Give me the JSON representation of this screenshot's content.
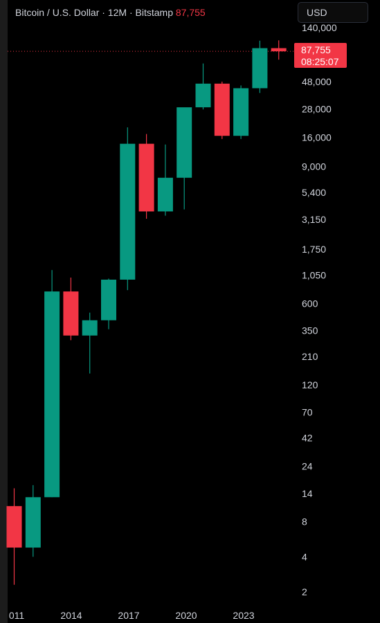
{
  "header": {
    "symbol": "Bitcoin / U.S. Dollar",
    "interval": "12M",
    "exchange": "Bitstamp",
    "last_price": "87,755",
    "separator": "·"
  },
  "currency_selector": {
    "value": "USD"
  },
  "price_label": {
    "price": "87,755",
    "countdown": "08:25:07",
    "color": "#f23645"
  },
  "colors": {
    "up": "#089981",
    "down": "#f23645",
    "background": "#000000",
    "text": "#d1d4dc"
  },
  "chart_data": {
    "type": "candlestick",
    "scale": "log",
    "title": "Bitcoin / U.S. Dollar · 12M · Bitstamp",
    "ylim": [
      1.6,
      155000
    ],
    "y_ticks": [
      "140,000",
      "48,000",
      "28,000",
      "16,000",
      "9,000",
      "5,400",
      "3,150",
      "1,750",
      "1,050",
      "600",
      "350",
      "210",
      "120",
      "70",
      "42",
      "24",
      "14",
      "8",
      "4",
      "2"
    ],
    "x_tick_labels": [
      "011",
      "2014",
      "2017",
      "2020",
      "2023"
    ],
    "candles": [
      {
        "year": 2012,
        "open": 10.9,
        "high": 15.5,
        "low": 2.3,
        "close": 4.8
      },
      {
        "year": 2013,
        "open": 4.8,
        "high": 16.5,
        "low": 4.0,
        "close": 13.0
      },
      {
        "year": 2014,
        "open": 13.0,
        "high": 1160,
        "low": 13.0,
        "close": 760
      },
      {
        "year": 2015,
        "open": 760,
        "high": 1000,
        "low": 290,
        "close": 318
      },
      {
        "year": 2016,
        "open": 318,
        "high": 500,
        "low": 150,
        "close": 430
      },
      {
        "year": 2017,
        "open": 430,
        "high": 980,
        "low": 360,
        "close": 960
      },
      {
        "year": 2018,
        "open": 960,
        "high": 19500,
        "low": 780,
        "close": 14100
      },
      {
        "year": 2019,
        "open": 14100,
        "high": 17100,
        "low": 3200,
        "close": 3700
      },
      {
        "year": 2020,
        "open": 3700,
        "high": 13900,
        "low": 3400,
        "close": 7200
      },
      {
        "year": 2021,
        "open": 7200,
        "high": 29000,
        "low": 3850,
        "close": 29000
      },
      {
        "year": 2022,
        "open": 29000,
        "high": 69000,
        "low": 27800,
        "close": 46300
      },
      {
        "year": 2023,
        "open": 46300,
        "high": 48200,
        "low": 15500,
        "close": 16500
      },
      {
        "year": 2024,
        "open": 16500,
        "high": 44700,
        "low": 15500,
        "close": 42300
      },
      {
        "year": 2025,
        "open": 42300,
        "high": 108300,
        "low": 38500,
        "close": 93400
      },
      {
        "year": 2026,
        "open": 93400,
        "high": 109000,
        "low": 74400,
        "close": 87755
      }
    ]
  }
}
